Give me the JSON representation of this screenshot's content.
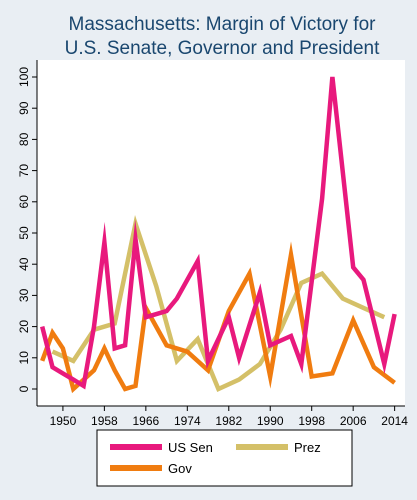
{
  "chart_data": {
    "type": "line",
    "title": [
      "Massachusetts: Margin of Victory for",
      "U.S. Senate, Governor and President"
    ],
    "xlabel": "",
    "ylabel": "",
    "xlim": [
      1945,
      2016
    ],
    "ylim": [
      0,
      100
    ],
    "x_ticks": [
      1950,
      1958,
      1966,
      1974,
      1982,
      1990,
      1998,
      2006,
      2014
    ],
    "y_ticks": [
      0,
      10,
      20,
      30,
      40,
      50,
      60,
      70,
      80,
      90,
      100
    ],
    "grid": false,
    "legend_position": "bottom",
    "series": [
      {
        "name": "US Sen",
        "color": "#e8197d",
        "points": [
          [
            1946,
            20
          ],
          [
            1948,
            7
          ],
          [
            1950,
            5
          ],
          [
            1952,
            3
          ],
          [
            1954,
            1
          ],
          [
            1956,
            20
          ],
          [
            1958,
            47
          ],
          [
            1960,
            13
          ],
          [
            1962,
            14
          ],
          [
            1964,
            48
          ],
          [
            1966,
            23
          ],
          [
            1970,
            25
          ],
          [
            1972,
            29
          ],
          [
            1976,
            41
          ],
          [
            1978,
            9
          ],
          [
            1982,
            23
          ],
          [
            1984,
            10
          ],
          [
            1988,
            31
          ],
          [
            1990,
            14
          ],
          [
            1994,
            17
          ],
          [
            1996,
            8
          ],
          [
            2000,
            61
          ],
          [
            2002,
            100
          ],
          [
            2006,
            39
          ],
          [
            2008,
            35
          ],
          [
            2012,
            8
          ],
          [
            2014,
            24
          ]
        ]
      },
      {
        "name": "Prez",
        "color": "#d4c068",
        "points": [
          [
            1948,
            12
          ],
          [
            1952,
            9
          ],
          [
            1956,
            19
          ],
          [
            1960,
            21
          ],
          [
            1964,
            53
          ],
          [
            1968,
            33
          ],
          [
            1972,
            9
          ],
          [
            1976,
            16
          ],
          [
            1980,
            0
          ],
          [
            1984,
            3
          ],
          [
            1988,
            8
          ],
          [
            1992,
            19
          ],
          [
            1996,
            34
          ],
          [
            2000,
            37
          ],
          [
            2004,
            29
          ],
          [
            2008,
            26
          ],
          [
            2012,
            23
          ]
        ]
      },
      {
        "name": "Gov",
        "color": "#f07c10",
        "points": [
          [
            1946,
            9
          ],
          [
            1948,
            18
          ],
          [
            1950,
            13
          ],
          [
            1952,
            0
          ],
          [
            1956,
            6
          ],
          [
            1958,
            13
          ],
          [
            1960,
            6
          ],
          [
            1962,
            0
          ],
          [
            1964,
            1
          ],
          [
            1966,
            26
          ],
          [
            1970,
            14
          ],
          [
            1974,
            12
          ],
          [
            1978,
            6
          ],
          [
            1982,
            25
          ],
          [
            1986,
            37
          ],
          [
            1990,
            4
          ],
          [
            1994,
            43
          ],
          [
            1998,
            4
          ],
          [
            2002,
            5
          ],
          [
            2006,
            22
          ],
          [
            2010,
            7
          ],
          [
            2014,
            2
          ]
        ]
      }
    ]
  }
}
